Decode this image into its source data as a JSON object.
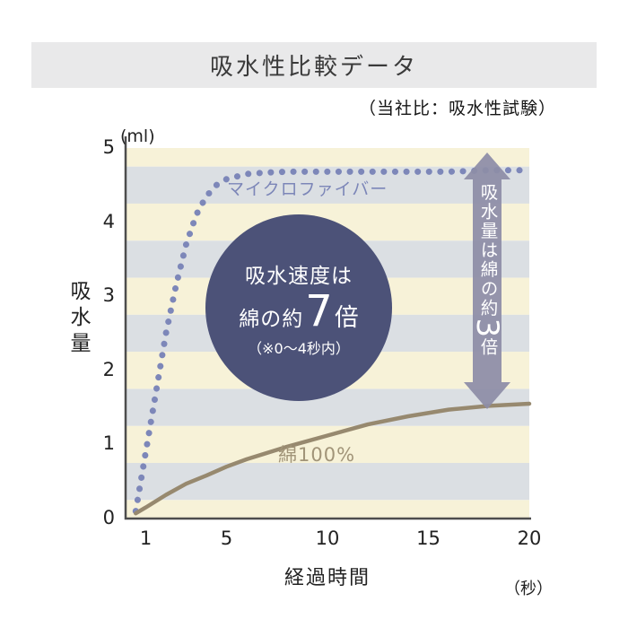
{
  "header": {
    "title": "吸水性比較データ",
    "subtitle": "（当社比：吸水性試験）"
  },
  "chart_data": {
    "type": "line",
    "title": "吸水性比較データ",
    "note": "（当社比：吸水性試験）",
    "xlabel": "経過時間",
    "x_unit": "（秒）",
    "ylabel": "吸水量",
    "y_unit": "(ml)",
    "xlim": [
      0,
      20
    ],
    "ylim": [
      0,
      5
    ],
    "x_ticks": [
      1,
      5,
      10,
      15,
      20
    ],
    "y_ticks": [
      0,
      1,
      2,
      3,
      4,
      5
    ],
    "grid": "striped-bands",
    "stripe_colors": [
      "#dbdfe3",
      "#f7f2d8"
    ],
    "series": [
      {
        "name": "マイクロファイバー",
        "style": "dotted",
        "color": "#7d87b9",
        "x": [
          0.5,
          1,
          1.5,
          2,
          2.5,
          3,
          3.5,
          4,
          4.5,
          5,
          6,
          7,
          8,
          10,
          12,
          14,
          16,
          18,
          20
        ],
        "values": [
          0.1,
          0.9,
          1.7,
          2.5,
          3.15,
          3.7,
          4.1,
          4.35,
          4.5,
          4.58,
          4.65,
          4.67,
          4.68,
          4.68,
          4.68,
          4.68,
          4.68,
          4.7,
          4.7
        ]
      },
      {
        "name": "綿100%",
        "style": "solid",
        "color": "#97896f",
        "x": [
          0.5,
          1,
          2,
          3,
          4,
          5,
          6,
          8,
          10,
          12,
          14,
          16,
          18,
          20
        ],
        "values": [
          0.07,
          0.15,
          0.32,
          0.47,
          0.58,
          0.7,
          0.8,
          0.97,
          1.12,
          1.27,
          1.38,
          1.47,
          1.52,
          1.55
        ]
      }
    ],
    "annotations": {
      "circle_note": {
        "line1": "吸水速度は",
        "line2_pre": "綿の約",
        "line2_big": "7",
        "line2_post": "倍",
        "line3": "（※0〜4秒内）",
        "fill": "#4c5278"
      },
      "arrow_note": {
        "pre": "吸水量は綿の約",
        "big": "3",
        "post": "倍",
        "fill": "#8d8da7"
      }
    }
  }
}
